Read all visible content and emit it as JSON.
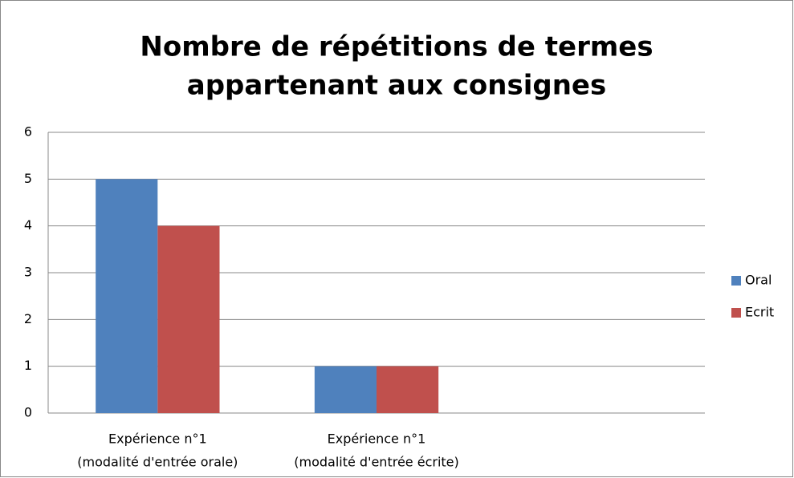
{
  "chart_data": {
    "type": "bar",
    "title": [
      "Nombre de répétitions de termes",
      "appartenant aux consignes"
    ],
    "categories": [
      [
        "Expérience n°1",
        "(modalité d'entrée orale)"
      ],
      [
        "Expérience n°1",
        "(modalité d'entrée écrite)"
      ],
      null
    ],
    "series": [
      {
        "name": "Oral",
        "color": "#4f81bd",
        "values": [
          5,
          1,
          null
        ]
      },
      {
        "name": "Ecrit",
        "color": "#c0504d",
        "values": [
          4,
          1,
          null
        ]
      }
    ],
    "ylim": [
      0,
      6
    ],
    "yticks": [
      0,
      1,
      2,
      3,
      4,
      5,
      6
    ],
    "grid": true,
    "legend": "right"
  }
}
